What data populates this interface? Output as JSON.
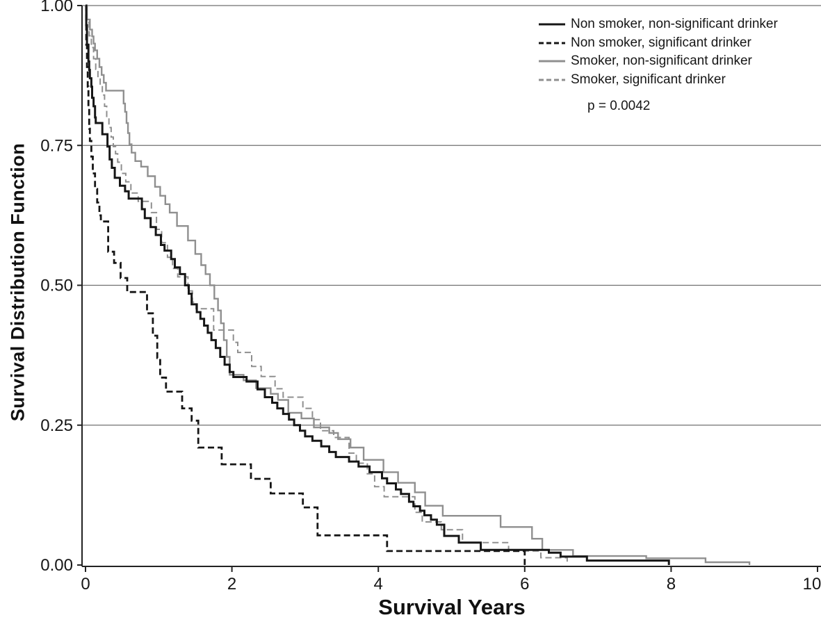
{
  "figure": {
    "y_axis_title": "Survival Distribution Function",
    "x_axis_title": "Survival Years",
    "p_value": "p = 0.0042"
  },
  "chart_data": {
    "type": "line",
    "subtype": "kaplan-meier-step",
    "title": "",
    "xlabel": "Survival Years",
    "ylabel": "Survival Distribution Function",
    "xlim": [
      0,
      10
    ],
    "ylim": [
      0.0,
      1.0
    ],
    "x_ticks": [
      0,
      2,
      4,
      6,
      8,
      10
    ],
    "x_tick_labels": [
      "0",
      "2",
      "4",
      "6",
      "8",
      "10"
    ],
    "y_ticks": [
      0.0,
      0.25,
      0.5,
      0.75,
      1.0
    ],
    "y_tick_labels": [
      "0.00",
      "0.25",
      "0.50",
      "0.75",
      "1.00"
    ],
    "grid": "horizontal",
    "legend_position": "top-right",
    "annotation": "p = 0.0042",
    "colors": {
      "black": "#161616",
      "gray": "#8f8f8f"
    },
    "series": [
      {
        "name": "Non smoker, non-significant drinker",
        "color": "black",
        "dash": "solid",
        "width": 3,
        "points": [
          [
            0,
            1.0
          ],
          [
            0.01,
            0.965
          ],
          [
            0.02,
            0.93
          ],
          [
            0.04,
            0.9
          ],
          [
            0.05,
            0.885
          ],
          [
            0.06,
            0.87
          ],
          [
            0.08,
            0.855
          ],
          [
            0.09,
            0.835
          ],
          [
            0.11,
            0.82
          ],
          [
            0.13,
            0.8
          ],
          [
            0.14,
            0.79
          ],
          [
            0.23,
            0.77
          ],
          [
            0.3,
            0.748
          ],
          [
            0.33,
            0.725
          ],
          [
            0.36,
            0.71
          ],
          [
            0.4,
            0.692
          ],
          [
            0.47,
            0.678
          ],
          [
            0.54,
            0.668
          ],
          [
            0.59,
            0.655
          ],
          [
            0.77,
            0.636
          ],
          [
            0.81,
            0.62
          ],
          [
            0.89,
            0.604
          ],
          [
            0.96,
            0.59
          ],
          [
            1.03,
            0.572
          ],
          [
            1.08,
            0.562
          ],
          [
            1.17,
            0.547
          ],
          [
            1.22,
            0.532
          ],
          [
            1.29,
            0.52
          ],
          [
            1.36,
            0.5
          ],
          [
            1.41,
            0.485
          ],
          [
            1.45,
            0.466
          ],
          [
            1.52,
            0.452
          ],
          [
            1.57,
            0.44
          ],
          [
            1.62,
            0.428
          ],
          [
            1.67,
            0.415
          ],
          [
            1.72,
            0.402
          ],
          [
            1.78,
            0.388
          ],
          [
            1.84,
            0.372
          ],
          [
            1.9,
            0.358
          ],
          [
            1.97,
            0.345
          ],
          [
            2.02,
            0.336
          ],
          [
            2.2,
            0.328
          ],
          [
            2.35,
            0.314
          ],
          [
            2.45,
            0.3
          ],
          [
            2.55,
            0.29
          ],
          [
            2.62,
            0.28
          ],
          [
            2.7,
            0.27
          ],
          [
            2.78,
            0.26
          ],
          [
            2.85,
            0.25
          ],
          [
            2.93,
            0.24
          ],
          [
            3.0,
            0.23
          ],
          [
            3.1,
            0.222
          ],
          [
            3.22,
            0.212
          ],
          [
            3.33,
            0.202
          ],
          [
            3.42,
            0.193
          ],
          [
            3.6,
            0.185
          ],
          [
            3.73,
            0.176
          ],
          [
            3.88,
            0.166
          ],
          [
            4.05,
            0.155
          ],
          [
            4.12,
            0.146
          ],
          [
            4.24,
            0.135
          ],
          [
            4.31,
            0.127
          ],
          [
            4.42,
            0.113
          ],
          [
            4.48,
            0.105
          ],
          [
            4.57,
            0.097
          ],
          [
            4.63,
            0.089
          ],
          [
            4.72,
            0.081
          ],
          [
            4.8,
            0.072
          ],
          [
            4.9,
            0.052
          ],
          [
            5.1,
            0.04
          ],
          [
            5.4,
            0.027
          ],
          [
            6.33,
            0.022
          ],
          [
            6.49,
            0.015
          ],
          [
            6.85,
            0.008
          ],
          [
            7.97,
            0
          ]
        ]
      },
      {
        "name": "Non smoker, significant drinker",
        "color": "black",
        "dash": "dashed",
        "width": 2.8,
        "points": [
          [
            0,
            1.0
          ],
          [
            0.01,
            0.93
          ],
          [
            0.02,
            0.89
          ],
          [
            0.03,
            0.855
          ],
          [
            0.04,
            0.82
          ],
          [
            0.05,
            0.78
          ],
          [
            0.06,
            0.758
          ],
          [
            0.08,
            0.73
          ],
          [
            0.1,
            0.7
          ],
          [
            0.13,
            0.672
          ],
          [
            0.16,
            0.648
          ],
          [
            0.19,
            0.625
          ],
          [
            0.21,
            0.614
          ],
          [
            0.31,
            0.56
          ],
          [
            0.39,
            0.54
          ],
          [
            0.48,
            0.513
          ],
          [
            0.57,
            0.488
          ],
          [
            0.84,
            0.45
          ],
          [
            0.92,
            0.41
          ],
          [
            0.98,
            0.37
          ],
          [
            1.02,
            0.335
          ],
          [
            1.1,
            0.31
          ],
          [
            1.32,
            0.28
          ],
          [
            1.45,
            0.258
          ],
          [
            1.54,
            0.21
          ],
          [
            1.86,
            0.18
          ],
          [
            2.26,
            0.154
          ],
          [
            2.53,
            0.128
          ],
          [
            2.97,
            0.103
          ],
          [
            3.17,
            0.053
          ],
          [
            4.12,
            0.025
          ],
          [
            6.0,
            0
          ]
        ]
      },
      {
        "name": "Smoker, non-significant drinker",
        "color": "gray",
        "dash": "solid",
        "width": 2.4,
        "points": [
          [
            0,
            1.0
          ],
          [
            0.02,
            0.975
          ],
          [
            0.06,
            0.957
          ],
          [
            0.09,
            0.945
          ],
          [
            0.11,
            0.932
          ],
          [
            0.13,
            0.92
          ],
          [
            0.16,
            0.905
          ],
          [
            0.19,
            0.89
          ],
          [
            0.22,
            0.876
          ],
          [
            0.25,
            0.862
          ],
          [
            0.28,
            0.848
          ],
          [
            0.52,
            0.825
          ],
          [
            0.54,
            0.81
          ],
          [
            0.56,
            0.79
          ],
          [
            0.58,
            0.772
          ],
          [
            0.6,
            0.752
          ],
          [
            0.63,
            0.737
          ],
          [
            0.68,
            0.722
          ],
          [
            0.76,
            0.712
          ],
          [
            0.85,
            0.695
          ],
          [
            0.95,
            0.676
          ],
          [
            1.02,
            0.66
          ],
          [
            1.09,
            0.645
          ],
          [
            1.15,
            0.63
          ],
          [
            1.25,
            0.606
          ],
          [
            1.4,
            0.58
          ],
          [
            1.5,
            0.556
          ],
          [
            1.58,
            0.536
          ],
          [
            1.64,
            0.52
          ],
          [
            1.7,
            0.5
          ],
          [
            1.76,
            0.476
          ],
          [
            1.81,
            0.455
          ],
          [
            1.85,
            0.432
          ],
          [
            1.89,
            0.402
          ],
          [
            1.93,
            0.372
          ],
          [
            1.97,
            0.34
          ],
          [
            2.16,
            0.33
          ],
          [
            2.33,
            0.316
          ],
          [
            2.53,
            0.306
          ],
          [
            2.63,
            0.295
          ],
          [
            2.77,
            0.272
          ],
          [
            2.95,
            0.262
          ],
          [
            3.12,
            0.246
          ],
          [
            3.33,
            0.236
          ],
          [
            3.45,
            0.225
          ],
          [
            3.62,
            0.21
          ],
          [
            3.8,
            0.188
          ],
          [
            4.07,
            0.166
          ],
          [
            4.27,
            0.147
          ],
          [
            4.5,
            0.13
          ],
          [
            4.64,
            0.106
          ],
          [
            4.88,
            0.088
          ],
          [
            5.67,
            0.068
          ],
          [
            6.1,
            0.047
          ],
          [
            6.24,
            0.027
          ],
          [
            6.66,
            0.016
          ],
          [
            7.66,
            0.012
          ],
          [
            8.47,
            0.005
          ],
          [
            9.07,
            0
          ]
        ]
      },
      {
        "name": "Smoker, significant drinker",
        "color": "gray",
        "dash": "dashed",
        "width": 2,
        "points": [
          [
            0,
            1.0
          ],
          [
            0.02,
            0.97
          ],
          [
            0.05,
            0.946
          ],
          [
            0.08,
            0.925
          ],
          [
            0.11,
            0.905
          ],
          [
            0.14,
            0.886
          ],
          [
            0.17,
            0.87
          ],
          [
            0.2,
            0.855
          ],
          [
            0.23,
            0.84
          ],
          [
            0.26,
            0.82
          ],
          [
            0.29,
            0.8
          ],
          [
            0.32,
            0.782
          ],
          [
            0.35,
            0.765
          ],
          [
            0.38,
            0.748
          ],
          [
            0.41,
            0.735
          ],
          [
            0.44,
            0.72
          ],
          [
            0.49,
            0.7
          ],
          [
            0.55,
            0.685
          ],
          [
            0.62,
            0.665
          ],
          [
            0.72,
            0.65
          ],
          [
            0.9,
            0.63
          ],
          [
            0.97,
            0.6
          ],
          [
            1.04,
            0.576
          ],
          [
            1.12,
            0.55
          ],
          [
            1.19,
            0.53
          ],
          [
            1.26,
            0.515
          ],
          [
            1.4,
            0.49
          ],
          [
            1.46,
            0.47
          ],
          [
            1.51,
            0.458
          ],
          [
            1.75,
            0.42
          ],
          [
            2.02,
            0.398
          ],
          [
            2.08,
            0.38
          ],
          [
            2.27,
            0.355
          ],
          [
            2.4,
            0.337
          ],
          [
            2.59,
            0.315
          ],
          [
            2.7,
            0.3
          ],
          [
            2.97,
            0.28
          ],
          [
            3.1,
            0.26
          ],
          [
            3.21,
            0.24
          ],
          [
            3.39,
            0.228
          ],
          [
            3.6,
            0.2
          ],
          [
            3.7,
            0.182
          ],
          [
            3.85,
            0.163
          ],
          [
            3.95,
            0.14
          ],
          [
            4.08,
            0.122
          ],
          [
            4.5,
            0.094
          ],
          [
            4.6,
            0.077
          ],
          [
            4.86,
            0.063
          ],
          [
            5.15,
            0.04
          ],
          [
            5.78,
            0.025
          ],
          [
            6.22,
            0.013
          ],
          [
            6.58,
            0
          ]
        ]
      }
    ]
  }
}
